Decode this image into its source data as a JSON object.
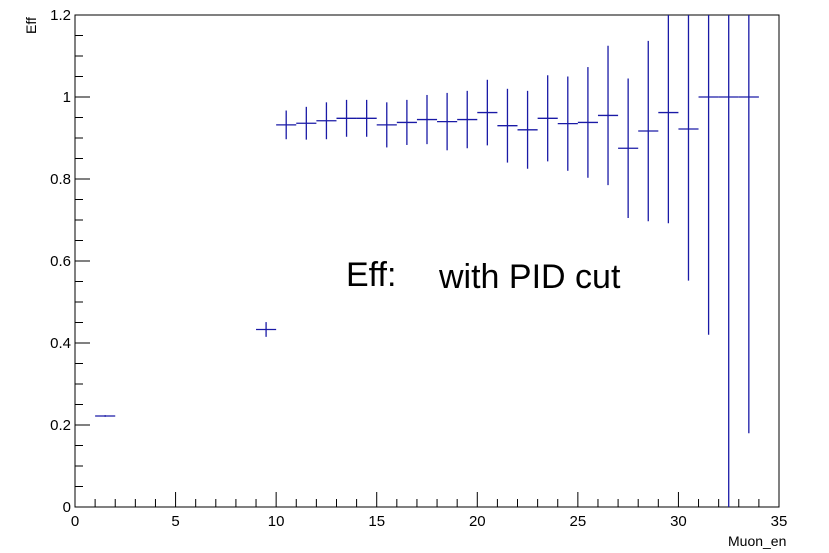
{
  "chart_data": {
    "type": "scatter",
    "style": "errorbar-histogram",
    "xlabel": "Muon_en",
    "ylabel": "Eff",
    "xlim": [
      0,
      35
    ],
    "ylim": [
      0,
      1.2
    ],
    "x_ticks": [
      "0",
      "5",
      "10",
      "15",
      "20",
      "25",
      "30",
      "35"
    ],
    "y_ticks": [
      "0",
      "0.2",
      "0.4",
      "0.6",
      "0.8",
      "1",
      "1.2"
    ],
    "x_tick_values": [
      0,
      5,
      10,
      15,
      20,
      25,
      30,
      35
    ],
    "y_tick_values": [
      0,
      0.2,
      0.4,
      0.6,
      0.8,
      1.0,
      1.2
    ],
    "grid": false,
    "color": "#1a1aa6",
    "annotations": [
      "Eff:",
      "with PID cut"
    ],
    "series": [
      {
        "points": [
          {
            "x": 1.5,
            "y": 0.222,
            "err": 0.002
          },
          {
            "x": 9.5,
            "y": 0.433,
            "err": 0.018
          },
          {
            "x": 10.5,
            "y": 0.932,
            "err": 0.035
          },
          {
            "x": 11.5,
            "y": 0.936,
            "err": 0.04
          },
          {
            "x": 12.5,
            "y": 0.942,
            "err": 0.045
          },
          {
            "x": 13.5,
            "y": 0.948,
            "err": 0.045
          },
          {
            "x": 14.5,
            "y": 0.948,
            "err": 0.045
          },
          {
            "x": 15.5,
            "y": 0.932,
            "err": 0.055
          },
          {
            "x": 16.5,
            "y": 0.938,
            "err": 0.055
          },
          {
            "x": 17.5,
            "y": 0.945,
            "err": 0.06
          },
          {
            "x": 18.5,
            "y": 0.94,
            "err": 0.07
          },
          {
            "x": 19.5,
            "y": 0.945,
            "err": 0.07
          },
          {
            "x": 20.5,
            "y": 0.962,
            "err": 0.08
          },
          {
            "x": 21.5,
            "y": 0.93,
            "err": 0.09
          },
          {
            "x": 22.5,
            "y": 0.92,
            "err": 0.095
          },
          {
            "x": 23.5,
            "y": 0.948,
            "err": 0.105
          },
          {
            "x": 24.5,
            "y": 0.935,
            "err": 0.115
          },
          {
            "x": 25.5,
            "y": 0.938,
            "err": 0.135
          },
          {
            "x": 26.5,
            "y": 0.955,
            "err": 0.17
          },
          {
            "x": 27.5,
            "y": 0.875,
            "err": 0.17
          },
          {
            "x": 28.5,
            "y": 0.917,
            "err": 0.22
          },
          {
            "x": 29.5,
            "y": 0.962,
            "err": 0.27
          },
          {
            "x": 30.5,
            "y": 0.922,
            "err": 0.37
          },
          {
            "x": 31.5,
            "y": 1.0,
            "err_low": 0.58,
            "err_high": 0.2
          },
          {
            "x": 32.5,
            "y": 1.0,
            "err_low": 1.0,
            "err_high": 0.2
          },
          {
            "x": 33.5,
            "y": 1.0,
            "err_low": 0.82,
            "err_high": 0.2
          }
        ]
      }
    ]
  }
}
